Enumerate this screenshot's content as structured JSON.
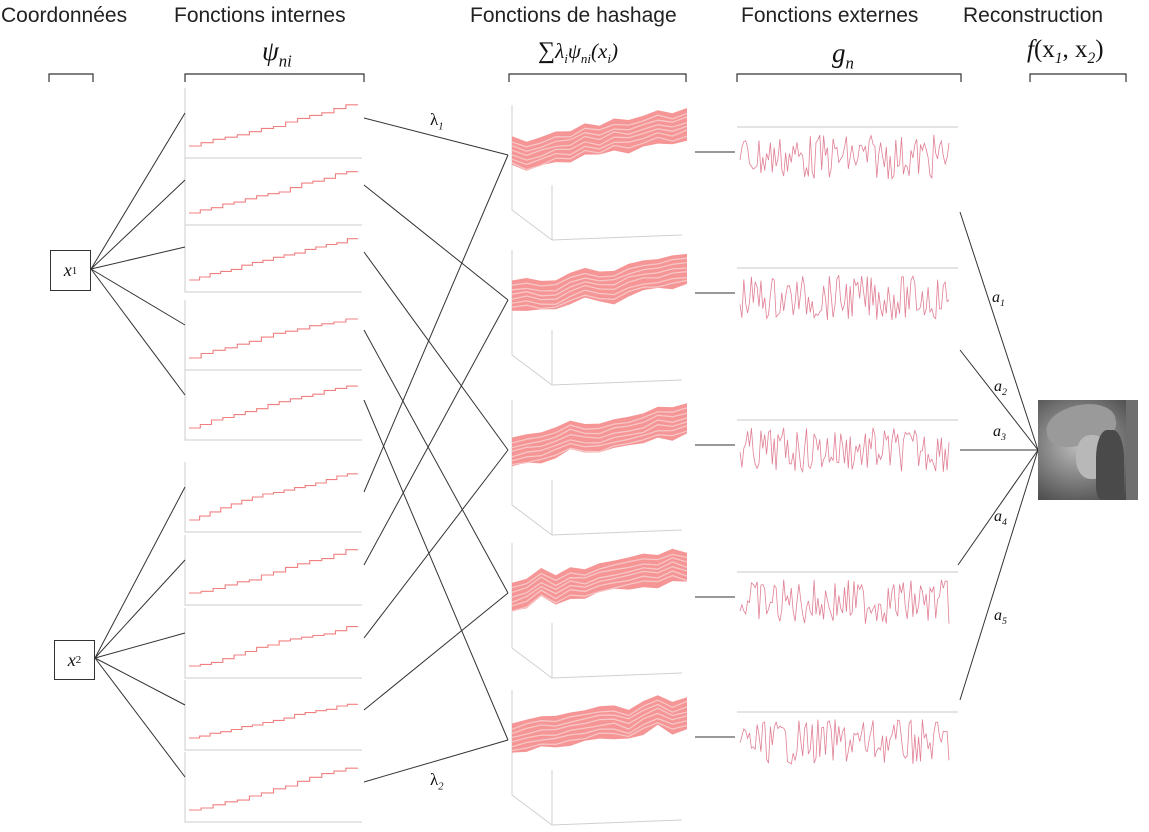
{
  "headers": {
    "coordinates": "Coordonnées",
    "inner": "Fonctions internes",
    "hashing": "Fonctions de hashage",
    "outer": "Fonctions externes",
    "reconstruction": "Reconstruction"
  },
  "math": {
    "psi": "ψ",
    "psi_sub": "ni",
    "sum_symbol": "∑",
    "sum_lambda": "λ",
    "sum_i": "i",
    "sum_psi": "ψ",
    "sum_ni": "ni",
    "sum_arg": "(x",
    "sum_arg_i": "i",
    "sum_close": ")",
    "g": "g",
    "g_sub": "n",
    "f": "f",
    "f_args_open": "(x",
    "f_x1_sub": "1",
    "f_comma": ", x",
    "f_x2_sub": "2",
    "f_args_close": ")"
  },
  "inputs": {
    "x1": "x",
    "x1_sub": "1",
    "x2": "x",
    "x2_sub": "2"
  },
  "lambdas": {
    "l1": "λ",
    "l1_sub": "1",
    "l2": "λ",
    "l2_sub": "2"
  },
  "weights": [
    {
      "sym": "a",
      "sub": "1"
    },
    {
      "sym": "a",
      "sub": "2"
    },
    {
      "sym": "a",
      "sub": "3"
    },
    {
      "sym": "a",
      "sub": "4"
    },
    {
      "sym": "a",
      "sub": "5"
    }
  ],
  "colors": {
    "step_line": "#f08080",
    "surface": "#f48a8a",
    "surface_light": "#f7c6c6",
    "signal": "#d9607a",
    "connector": "#333333",
    "panel_frame": "#cccccc"
  }
}
